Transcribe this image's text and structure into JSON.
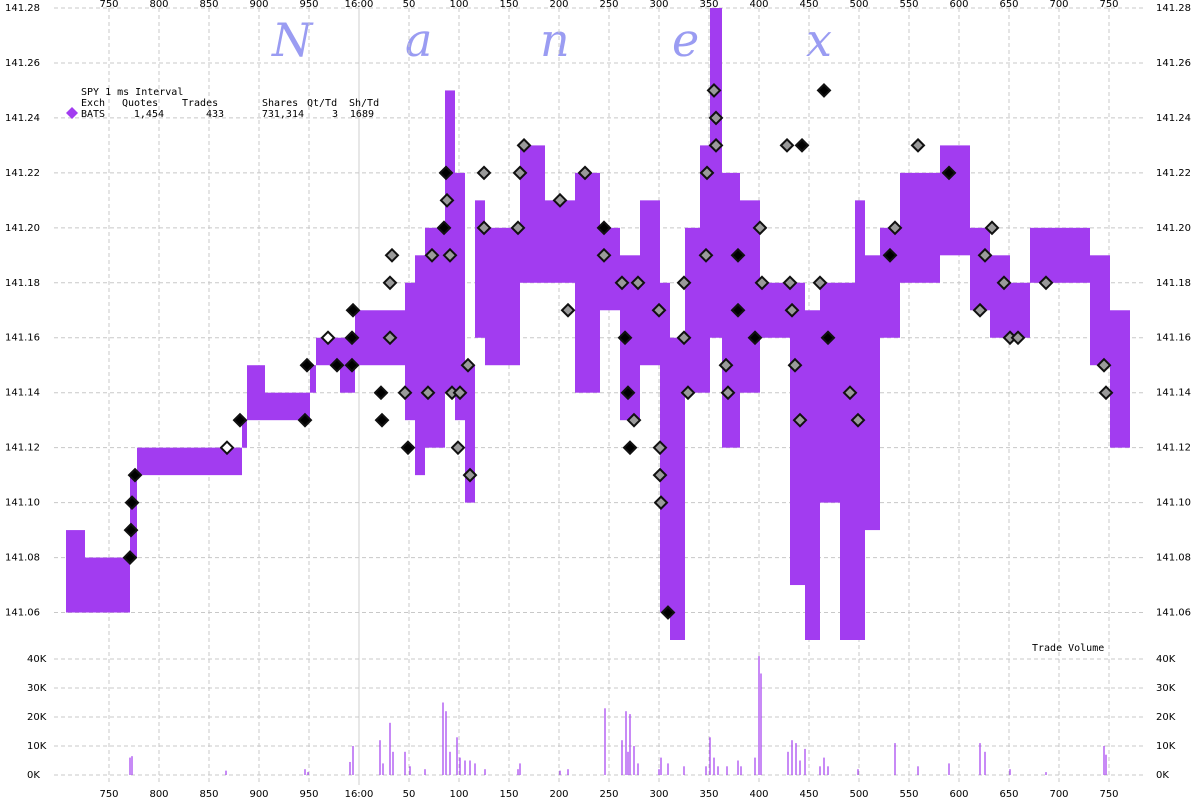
{
  "watermark": [
    "N",
    "a",
    "n",
    "e",
    "x"
  ],
  "chart_data": {
    "type": "quote_band",
    "xlim": [
      -305,
      786
    ],
    "xticks": [
      {
        "value": -250,
        "label": "750"
      },
      {
        "value": -200,
        "label": "800"
      },
      {
        "value": -150,
        "label": "850"
      },
      {
        "value": -100,
        "label": "900"
      },
      {
        "value": -50,
        "label": "950"
      },
      {
        "value": 0,
        "label": "16:00"
      },
      50,
      100,
      150,
      200,
      250,
      300,
      350,
      400,
      450,
      500,
      550,
      600,
      650,
      700,
      750
    ],
    "ylim": [
      141.05,
      141.28
    ],
    "yticks": [
      141.06,
      141.08,
      {
        "value": 141.1,
        "label": "141.10"
      },
      141.12,
      141.14,
      141.16,
      141.18,
      {
        "value": 141.2,
        "label": "141.20"
      },
      141.22,
      141.24,
      141.26,
      141.28
    ],
    "grid": true,
    "legend": {
      "title": "SPY 1 ms Interval",
      "columns": [
        "Exch",
        "Quotes",
        "Trades",
        "Shares",
        "Qt/Td",
        "Sh/Td"
      ],
      "stats": [
        "1,454",
        "433",
        "731,314",
        "3",
        "1689"
      ]
    },
    "series": [
      {
        "name": "BATS",
        "color": "#a23cf0",
        "bins": [
          -293,
          -274,
          -229,
          -222,
          -117,
          -112,
          -94,
          -49,
          -43,
          -19,
          -4,
          46,
          56,
          66,
          86,
          96,
          106,
          116,
          126,
          161,
          186,
          216,
          241,
          261,
          281,
          301,
          311,
          326,
          341,
          351,
          363,
          381,
          401,
          431,
          446,
          461,
          481,
          496,
          506,
          521,
          541,
          581,
          611,
          631,
          651,
          671,
          731,
          751,
          771
        ],
        "low": [
          141.06,
          141.06,
          141.08,
          141.11,
          141.12,
          141.13,
          141.13,
          141.14,
          141.15,
          141.14,
          141.15,
          141.13,
          141.11,
          141.12,
          141.14,
          141.13,
          141.1,
          141.16,
          141.15,
          141.18,
          141.18,
          141.14,
          141.17,
          141.13,
          141.15,
          141.06,
          141.05,
          141.14,
          141.14,
          141.16,
          141.12,
          141.14,
          141.16,
          141.07,
          141.05,
          141.1,
          141.05,
          141.05,
          141.09,
          141.16,
          141.18,
          141.19,
          141.17,
          141.16,
          141.16,
          141.18,
          141.15,
          141.12
        ],
        "high": [
          141.09,
          141.08,
          141.11,
          141.12,
          141.13,
          141.15,
          141.14,
          141.15,
          141.16,
          141.16,
          141.17,
          141.18,
          141.19,
          141.2,
          141.25,
          141.22,
          141.15,
          141.21,
          141.2,
          141.23,
          141.21,
          141.22,
          141.2,
          141.19,
          141.21,
          141.18,
          141.16,
          141.2,
          141.23,
          141.28,
          141.22,
          141.21,
          141.18,
          141.18,
          141.17,
          141.18,
          141.18,
          141.21,
          141.19,
          141.2,
          141.22,
          141.23,
          141.2,
          141.19,
          141.18,
          141.2,
          141.19,
          141.17
        ]
      }
    ],
    "trades": {
      "x": [
        -229,
        -228,
        -227,
        -224,
        -132,
        -119,
        -54,
        -52,
        -31,
        -22,
        -7,
        -6,
        -7,
        22,
        23,
        31,
        31,
        33,
        49,
        46,
        69,
        73,
        85,
        87,
        88,
        91,
        93,
        99,
        101,
        109,
        111,
        125,
        125,
        159,
        161,
        165,
        201,
        209,
        226,
        245,
        245,
        263,
        266,
        269,
        271,
        275,
        279,
        300,
        301,
        301,
        302,
        309,
        325,
        325,
        329,
        347,
        348,
        355,
        357,
        357,
        367,
        369,
        379,
        379,
        396,
        401,
        403,
        428,
        431,
        433,
        436,
        441,
        443,
        461,
        465,
        469,
        491,
        499,
        531,
        536,
        559,
        590,
        621,
        626,
        633,
        645,
        651,
        659,
        687,
        745,
        747
      ],
      "values": [
        141.08,
        141.09,
        141.1,
        141.11,
        141.12,
        141.13,
        141.13,
        141.15,
        141.16,
        141.15,
        141.16,
        141.17,
        141.15,
        141.14,
        141.13,
        141.16,
        141.18,
        141.19,
        141.12,
        141.14,
        141.14,
        141.19,
        141.2,
        141.22,
        141.21,
        141.19,
        141.14,
        141.12,
        141.14,
        141.15,
        141.11,
        141.22,
        141.2,
        141.2,
        141.22,
        141.23,
        141.21,
        141.17,
        141.22,
        141.2,
        141.19,
        141.18,
        141.16,
        141.14,
        141.12,
        141.13,
        141.18,
        141.17,
        141.12,
        141.11,
        141.1,
        141.06,
        141.18,
        141.16,
        141.14,
        141.19,
        141.22,
        141.25,
        141.24,
        141.23,
        141.15,
        141.14,
        141.19,
        141.17,
        141.16,
        141.2,
        141.18,
        141.23,
        141.18,
        141.17,
        141.15,
        141.13,
        141.23,
        141.18,
        141.25,
        141.16,
        141.14,
        141.13,
        141.19,
        141.2,
        141.23,
        141.22,
        141.17,
        141.19,
        141.2,
        141.18,
        141.16,
        141.16,
        141.18,
        141.15,
        141.14
      ],
      "colors": [
        "#000000",
        "#000000",
        "#000000",
        "#000000",
        "#ffffff",
        "#000000",
        "#000000",
        "#000000",
        "#ffffff",
        "#000000",
        "#000000",
        "#000000",
        "#000000",
        "#000000",
        "#000000",
        "#9a9a9a",
        "#9a9a9a",
        "#9a9a9a",
        "#000000",
        "#9a9a9a",
        "#9a9a9a",
        "#9a9a9a",
        "#000000",
        "#000000",
        "#9a9a9a",
        "#9a9a9a",
        "#9a9a9a",
        "#9a9a9a",
        "#9a9a9a",
        "#9a9a9a",
        "#9a9a9a",
        "#9a9a9a",
        "#9a9a9a",
        "#9a9a9a",
        "#9a9a9a",
        "#9a9a9a",
        "#9a9a9a",
        "#9a9a9a",
        "#9a9a9a",
        "#000000",
        "#9a9a9a",
        "#9a9a9a",
        "#000000",
        "#000000",
        "#000000",
        "#9a9a9a",
        "#9a9a9a",
        "#9a9a9a",
        "#9a9a9a",
        "#9a9a9a",
        "#9a9a9a",
        "#000000",
        "#9a9a9a",
        "#9a9a9a",
        "#9a9a9a",
        "#9a9a9a",
        "#9a9a9a",
        "#9a9a9a",
        "#9a9a9a",
        "#9a9a9a",
        "#9a9a9a",
        "#9a9a9a",
        "#000000",
        "#000000",
        "#000000",
        "#9a9a9a",
        "#9a9a9a",
        "#9a9a9a",
        "#9a9a9a",
        "#9a9a9a",
        "#9a9a9a",
        "#9a9a9a",
        "#000000",
        "#9a9a9a",
        "#000000",
        "#000000",
        "#9a9a9a",
        "#9a9a9a",
        "#000000",
        "#9a9a9a",
        "#9a9a9a",
        "#000000",
        "#9a9a9a",
        "#9a9a9a",
        "#9a9a9a",
        "#9a9a9a",
        "#9a9a9a",
        "#9a9a9a",
        "#9a9a9a",
        "#9a9a9a",
        "#9a9a9a"
      ]
    },
    "volume": {
      "label": "Trade Volume",
      "color": "#a23cf0",
      "ylim": [
        0,
        40000
      ],
      "yticks": [
        {
          "value": 0,
          "label": "0K"
        },
        {
          "value": 10000,
          "label": "10K"
        },
        {
          "value": 20000,
          "label": "20K"
        },
        {
          "value": 30000,
          "label": "30K"
        },
        {
          "value": 40000,
          "label": "40K"
        }
      ],
      "x": [
        -229,
        -227,
        -133,
        -54,
        -51,
        -9,
        -6,
        21,
        24,
        31,
        34,
        46,
        51,
        66,
        84,
        87,
        91,
        98,
        101,
        106,
        111,
        116,
        126,
        159,
        161,
        201,
        209,
        246,
        263,
        267,
        269,
        271,
        275,
        279,
        300,
        302,
        309,
        325,
        347,
        351,
        355,
        359,
        368,
        379,
        382,
        396,
        400,
        402,
        429,
        433,
        437,
        441,
        446,
        461,
        465,
        469,
        499,
        536,
        559,
        590,
        621,
        626,
        651,
        687,
        745,
        747
      ],
      "values": [
        6000,
        6500,
        1500,
        2000,
        1000,
        4500,
        10000,
        12000,
        4000,
        18000,
        8000,
        8000,
        3000,
        2000,
        25000,
        22000,
        8000,
        13000,
        6000,
        5000,
        5000,
        4000,
        2000,
        2000,
        4000,
        1500,
        2000,
        23000,
        12000,
        22000,
        8000,
        21000,
        10000,
        4000,
        2000,
        6000,
        4000,
        3000,
        3000,
        13000,
        6000,
        3000,
        3000,
        5000,
        3000,
        6000,
        41000,
        35000,
        8000,
        12000,
        11000,
        5000,
        9000,
        3000,
        6000,
        3000,
        2000,
        11000,
        3000,
        4000,
        11000,
        8000,
        2000,
        1000,
        10000,
        7000
      ]
    }
  }
}
